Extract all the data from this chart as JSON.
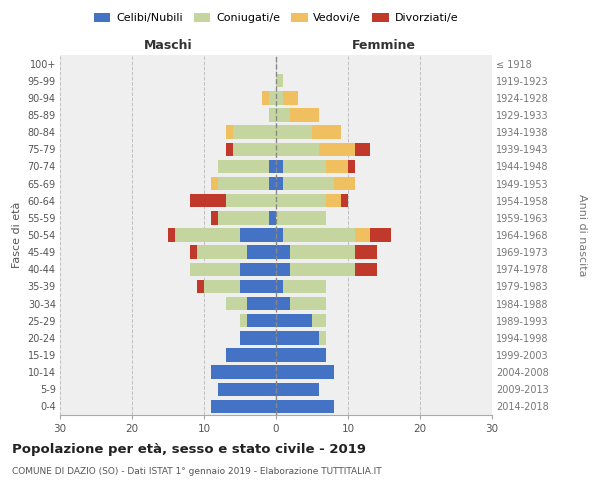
{
  "age_groups": [
    "0-4",
    "5-9",
    "10-14",
    "15-19",
    "20-24",
    "25-29",
    "30-34",
    "35-39",
    "40-44",
    "45-49",
    "50-54",
    "55-59",
    "60-64",
    "65-69",
    "70-74",
    "75-79",
    "80-84",
    "85-89",
    "90-94",
    "95-99",
    "100+"
  ],
  "birth_years": [
    "2014-2018",
    "2009-2013",
    "2004-2008",
    "1999-2003",
    "1994-1998",
    "1989-1993",
    "1984-1988",
    "1979-1983",
    "1974-1978",
    "1969-1973",
    "1964-1968",
    "1959-1963",
    "1954-1958",
    "1949-1953",
    "1944-1948",
    "1939-1943",
    "1934-1938",
    "1929-1933",
    "1924-1928",
    "1919-1923",
    "≤ 1918"
  ],
  "male": {
    "celibi": [
      9,
      8,
      9,
      7,
      5,
      4,
      4,
      5,
      5,
      4,
      5,
      1,
      0,
      1,
      1,
      0,
      0,
      0,
      0,
      0,
      0
    ],
    "coniugati": [
      0,
      0,
      0,
      0,
      0,
      1,
      3,
      5,
      7,
      7,
      9,
      7,
      7,
      7,
      7,
      6,
      6,
      1,
      1,
      0,
      0
    ],
    "vedovi": [
      0,
      0,
      0,
      0,
      0,
      0,
      0,
      0,
      0,
      0,
      0,
      0,
      0,
      1,
      0,
      0,
      1,
      0,
      1,
      0,
      0
    ],
    "divorziati": [
      0,
      0,
      0,
      0,
      0,
      0,
      0,
      1,
      0,
      1,
      1,
      1,
      5,
      0,
      0,
      1,
      0,
      0,
      0,
      0,
      0
    ]
  },
  "female": {
    "nubili": [
      8,
      6,
      8,
      7,
      6,
      5,
      2,
      1,
      2,
      2,
      1,
      0,
      0,
      1,
      1,
      0,
      0,
      0,
      0,
      0,
      0
    ],
    "coniugate": [
      0,
      0,
      0,
      0,
      1,
      2,
      5,
      6,
      9,
      9,
      10,
      7,
      7,
      7,
      6,
      6,
      5,
      2,
      1,
      1,
      0
    ],
    "vedove": [
      0,
      0,
      0,
      0,
      0,
      0,
      0,
      0,
      0,
      0,
      2,
      0,
      2,
      3,
      3,
      5,
      4,
      4,
      2,
      0,
      0
    ],
    "divorziate": [
      0,
      0,
      0,
      0,
      0,
      0,
      0,
      0,
      3,
      3,
      3,
      0,
      1,
      0,
      1,
      2,
      0,
      0,
      0,
      0,
      0
    ]
  },
  "colors": {
    "celibi": "#4472c4",
    "coniugati": "#c5d5a0",
    "vedovi": "#f0c060",
    "divorziati": "#c0392b"
  },
  "xlim": [
    -30,
    30
  ],
  "xticks": [
    -30,
    -20,
    -10,
    0,
    10,
    20,
    30
  ],
  "xticklabels": [
    "30",
    "20",
    "10",
    "0",
    "10",
    "20",
    "30"
  ],
  "title": "Popolazione per età, sesso e stato civile - 2019",
  "subtitle": "COMUNE DI DAZIO (SO) - Dati ISTAT 1° gennaio 2019 - Elaborazione TUTTITALIA.IT",
  "ylabel_left": "Fasce di età",
  "ylabel_right": "Anni di nascita",
  "header_male": "Maschi",
  "header_female": "Femmine",
  "legend_labels": [
    "Celibi/Nubili",
    "Coniugati/e",
    "Vedovi/e",
    "Divorziati/e"
  ],
  "bg_color": "#efefef"
}
